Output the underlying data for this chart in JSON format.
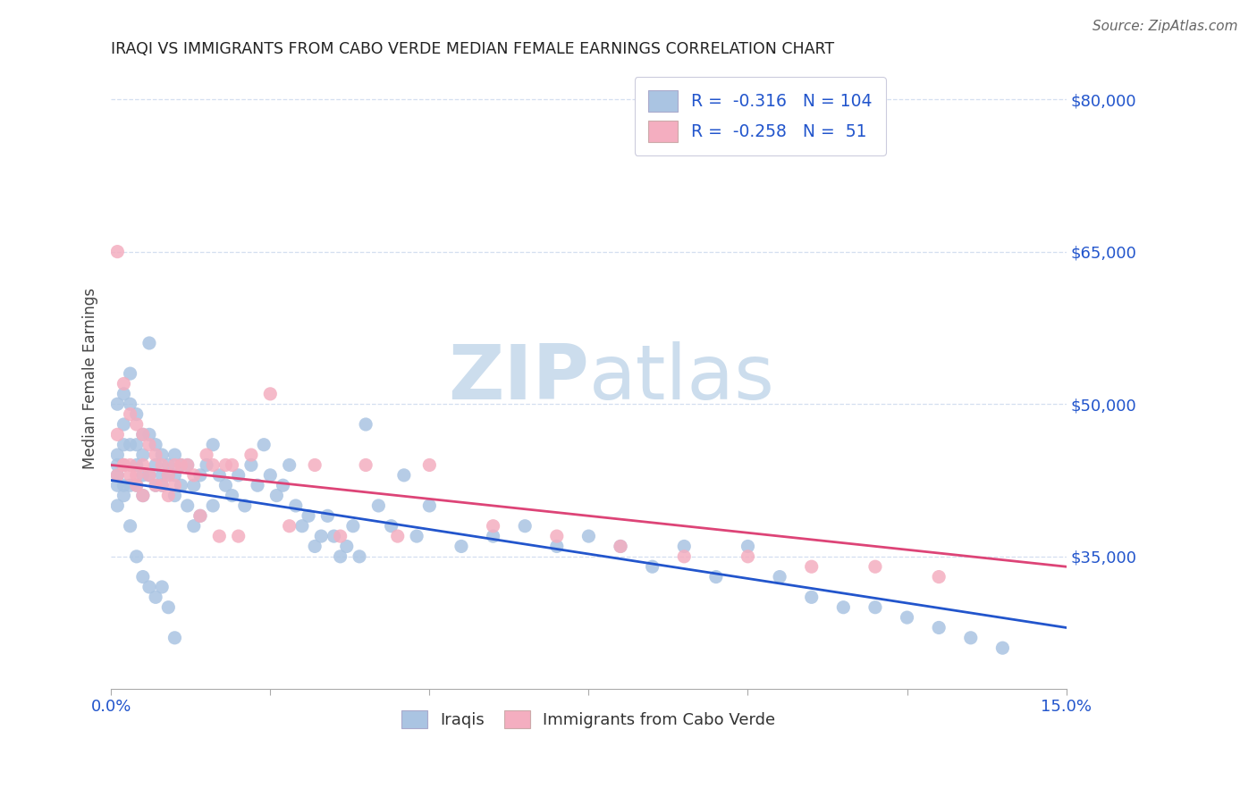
{
  "title": "IRAQI VS IMMIGRANTS FROM CABO VERDE MEDIAN FEMALE EARNINGS CORRELATION CHART",
  "source": "Source: ZipAtlas.com",
  "ylabel": "Median Female Earnings",
  "right_ytick_labels": [
    "$80,000",
    "$65,000",
    "$50,000",
    "$35,000"
  ],
  "right_ytick_values": [
    80000,
    65000,
    50000,
    35000
  ],
  "legend_iraqis_label": "Iraqis",
  "legend_cabo_label": "Immigrants from Cabo Verde",
  "iraqis_R": "-0.316",
  "iraqis_N": "104",
  "cabo_R": "-0.258",
  "cabo_N": "51",
  "iraqis_color": "#aac4e2",
  "cabo_color": "#f4aec0",
  "iraqis_line_color": "#2255cc",
  "cabo_line_color": "#dd4477",
  "legend_text_color": "#2255cc",
  "right_axis_color": "#2255cc",
  "watermark_color": "#ccdded",
  "background_color": "#ffffff",
  "grid_color": "#d4dff0",
  "xlim": [
    0,
    0.15
  ],
  "ylim": [
    22000,
    83000
  ],
  "iraqis_x": [
    0.001,
    0.001,
    0.001,
    0.001,
    0.001,
    0.002,
    0.002,
    0.002,
    0.002,
    0.002,
    0.003,
    0.003,
    0.003,
    0.003,
    0.004,
    0.004,
    0.004,
    0.004,
    0.005,
    0.005,
    0.005,
    0.005,
    0.006,
    0.006,
    0.006,
    0.007,
    0.007,
    0.007,
    0.008,
    0.008,
    0.008,
    0.009,
    0.009,
    0.01,
    0.01,
    0.01,
    0.011,
    0.011,
    0.012,
    0.012,
    0.013,
    0.013,
    0.014,
    0.014,
    0.015,
    0.016,
    0.016,
    0.017,
    0.018,
    0.019,
    0.02,
    0.021,
    0.022,
    0.023,
    0.024,
    0.025,
    0.026,
    0.027,
    0.028,
    0.029,
    0.03,
    0.031,
    0.032,
    0.033,
    0.034,
    0.035,
    0.036,
    0.037,
    0.038,
    0.039,
    0.04,
    0.042,
    0.044,
    0.046,
    0.048,
    0.05,
    0.055,
    0.06,
    0.065,
    0.07,
    0.075,
    0.08,
    0.085,
    0.09,
    0.095,
    0.1,
    0.105,
    0.11,
    0.115,
    0.12,
    0.125,
    0.13,
    0.135,
    0.14,
    0.001,
    0.002,
    0.003,
    0.004,
    0.005,
    0.006,
    0.007,
    0.008,
    0.009,
    0.01
  ],
  "iraqis_y": [
    45000,
    44000,
    43000,
    42000,
    40000,
    48000,
    46000,
    44000,
    42000,
    41000,
    53000,
    50000,
    46000,
    42000,
    49000,
    46000,
    44000,
    42000,
    47000,
    45000,
    43000,
    41000,
    56000,
    47000,
    43000,
    46000,
    44000,
    42000,
    45000,
    43000,
    42000,
    44000,
    43000,
    45000,
    43000,
    41000,
    44000,
    42000,
    44000,
    40000,
    42000,
    38000,
    43000,
    39000,
    44000,
    46000,
    40000,
    43000,
    42000,
    41000,
    43000,
    40000,
    44000,
    42000,
    46000,
    43000,
    41000,
    42000,
    44000,
    40000,
    38000,
    39000,
    36000,
    37000,
    39000,
    37000,
    35000,
    36000,
    38000,
    35000,
    48000,
    40000,
    38000,
    43000,
    37000,
    40000,
    36000,
    37000,
    38000,
    36000,
    37000,
    36000,
    34000,
    36000,
    33000,
    36000,
    33000,
    31000,
    30000,
    30000,
    29000,
    28000,
    27000,
    26000,
    50000,
    51000,
    38000,
    35000,
    33000,
    32000,
    31000,
    32000,
    30000,
    27000
  ],
  "cabo_x": [
    0.001,
    0.001,
    0.002,
    0.002,
    0.003,
    0.003,
    0.004,
    0.004,
    0.005,
    0.005,
    0.006,
    0.006,
    0.007,
    0.007,
    0.008,
    0.008,
    0.009,
    0.009,
    0.01,
    0.01,
    0.011,
    0.012,
    0.013,
    0.014,
    0.015,
    0.016,
    0.017,
    0.018,
    0.019,
    0.02,
    0.022,
    0.025,
    0.028,
    0.032,
    0.036,
    0.04,
    0.045,
    0.05,
    0.06,
    0.07,
    0.08,
    0.09,
    0.1,
    0.11,
    0.12,
    0.13,
    0.001,
    0.002,
    0.003,
    0.004,
    0.005
  ],
  "cabo_y": [
    65000,
    47000,
    52000,
    44000,
    49000,
    44000,
    48000,
    43000,
    47000,
    44000,
    46000,
    43000,
    45000,
    42000,
    44000,
    42000,
    43000,
    41000,
    44000,
    42000,
    44000,
    44000,
    43000,
    39000,
    45000,
    44000,
    37000,
    44000,
    44000,
    37000,
    45000,
    51000,
    38000,
    44000,
    37000,
    44000,
    37000,
    44000,
    38000,
    37000,
    36000,
    35000,
    35000,
    34000,
    34000,
    33000,
    43000,
    44000,
    43000,
    42000,
    41000
  ]
}
